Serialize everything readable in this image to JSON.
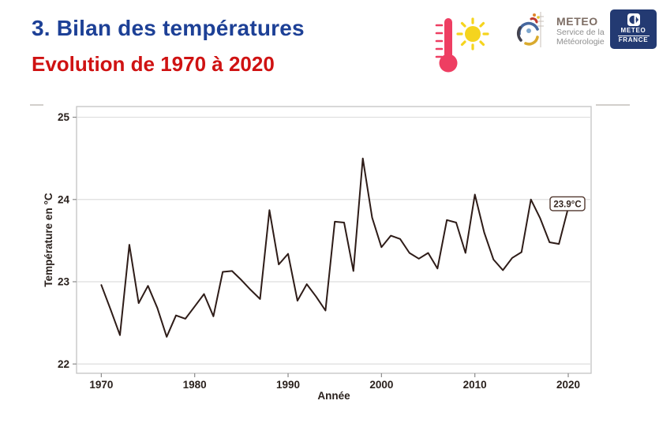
{
  "header": {
    "title": "3. Bilan des températures",
    "subtitle": "Evolution de 1970 à 2020",
    "title_color": "#1d4096",
    "subtitle_color": "#cf1212"
  },
  "logos": {
    "meteo_service": {
      "name": "METEO",
      "tagline1": "Service de la",
      "tagline2": "Météorologie"
    },
    "meteo_france": {
      "line1": "METEO",
      "line2": "FRANCE",
      "bg_color": "#233a72"
    }
  },
  "icons": {
    "thermometer_color": "#ee3e62",
    "sun_color": "#f5d41e"
  },
  "chart_data": {
    "type": "line",
    "title": "",
    "xlabel": "Année",
    "ylabel": "Température en °C",
    "x": [
      1970,
      1971,
      1972,
      1973,
      1974,
      1975,
      1976,
      1977,
      1978,
      1979,
      1980,
      1981,
      1982,
      1983,
      1984,
      1985,
      1986,
      1987,
      1988,
      1989,
      1990,
      1991,
      1992,
      1993,
      1994,
      1995,
      1996,
      1997,
      1998,
      1999,
      2000,
      2001,
      2002,
      2003,
      2004,
      2005,
      2006,
      2007,
      2008,
      2009,
      2010,
      2011,
      2012,
      2013,
      2014,
      2015,
      2016,
      2017,
      2018,
      2019,
      2020
    ],
    "values": [
      22.96,
      22.66,
      22.35,
      23.45,
      22.74,
      22.95,
      22.68,
      22.33,
      22.59,
      22.55,
      22.7,
      22.85,
      22.58,
      23.12,
      23.13,
      23.02,
      22.9,
      22.79,
      23.87,
      23.21,
      23.34,
      22.77,
      22.97,
      22.82,
      22.65,
      23.73,
      23.72,
      23.13,
      24.5,
      23.78,
      23.42,
      23.56,
      23.52,
      23.35,
      23.28,
      23.35,
      23.16,
      23.75,
      23.72,
      23.35,
      24.06,
      23.6,
      23.27,
      23.14,
      23.29,
      23.36,
      24.0,
      23.77,
      23.48,
      23.46,
      23.9
    ],
    "x_ticks": [
      1970,
      1980,
      1990,
      2000,
      2010,
      2020
    ],
    "y_ticks": [
      22,
      23,
      24,
      25
    ],
    "xlim": [
      1967.35,
      2022.45
    ],
    "ylim": [
      21.887,
      25.13
    ],
    "grid": true,
    "legend": "none",
    "line_color": "#2e1c18",
    "grid_color": "#dedede",
    "border_color": "#c4c4c4",
    "tick_text_color": "#2a211d",
    "annotation": {
      "text": "23.9°C",
      "year": 2020,
      "value": 23.9
    }
  }
}
